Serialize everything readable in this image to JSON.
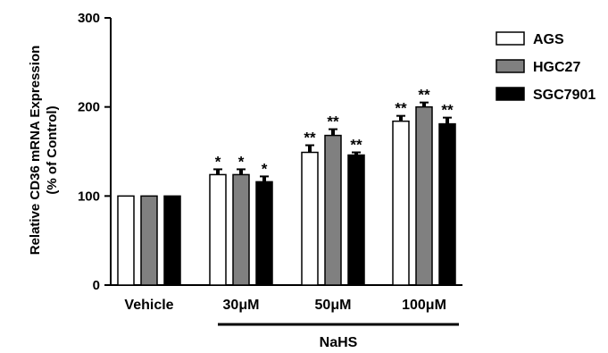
{
  "chart_data": {
    "type": "bar",
    "ylabel_line1": "Relative CD36 mRNA Expression",
    "ylabel_line2": "(% of Control)",
    "ylim": [
      0,
      300
    ],
    "yticks": [
      0,
      100,
      200,
      300
    ],
    "categories": [
      "Vehicle",
      "30μM",
      "50μM",
      "100μM"
    ],
    "group_label": "NaHS",
    "legend_position": "top-right",
    "series": [
      {
        "name": "AGS",
        "color": "#ffffff",
        "values": [
          100,
          124,
          149,
          184
        ],
        "errors": [
          0,
          6,
          8,
          6
        ],
        "sig": [
          "",
          "*",
          "**",
          "**"
        ]
      },
      {
        "name": "HGC27",
        "color": "#808080",
        "values": [
          100,
          124,
          168,
          200
        ],
        "errors": [
          0,
          6,
          7,
          5
        ],
        "sig": [
          "",
          "*",
          "**",
          "**"
        ]
      },
      {
        "name": "SGC7901",
        "color": "#000000",
        "values": [
          100,
          116,
          146,
          181
        ],
        "errors": [
          0,
          6,
          3,
          7
        ],
        "sig": [
          "",
          "*",
          "**",
          "**"
        ]
      }
    ]
  }
}
